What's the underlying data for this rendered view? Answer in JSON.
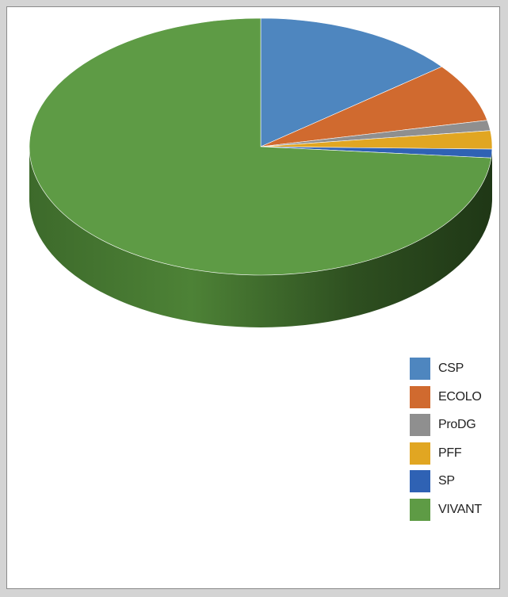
{
  "chart_data": {
    "type": "pie",
    "style": "3d",
    "title": "",
    "categories": [
      "CSP",
      "ECOLO",
      "ProDG",
      "PFF",
      "SP",
      "VIVANT"
    ],
    "values": [
      14.3,
      7.4,
      1.3,
      2.3,
      1.1,
      73.6
    ],
    "unit": "percent (estimated from slice sizes)",
    "colors": [
      "#4e86bf",
      "#d06a2f",
      "#8f8f8f",
      "#e1a622",
      "#2f62b4",
      "#5e9b45"
    ],
    "legend": {
      "position": "bottom-right",
      "entries": [
        "CSP",
        "ECOLO",
        "ProDG",
        "PFF",
        "SP",
        "VIVANT"
      ]
    }
  }
}
